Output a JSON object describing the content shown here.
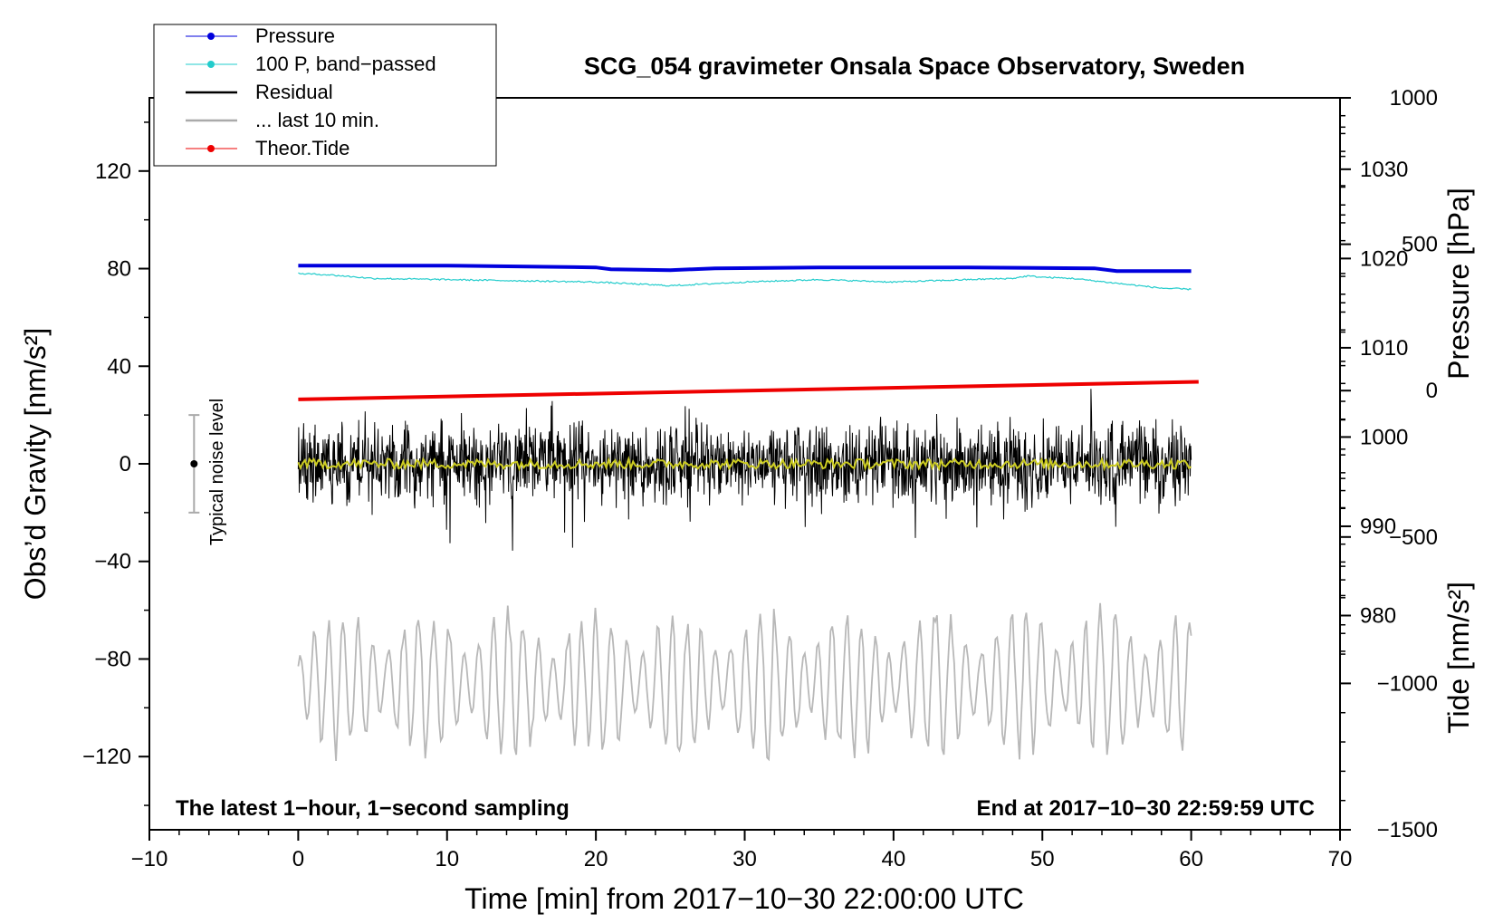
{
  "chart_data": {
    "type": "line",
    "title": "SCG_054 gravimeter Onsala Space Observatory, Sweden",
    "xlabel": "Time [min] from 2017−10−30 22:00:00 UTC",
    "ylabel_left": "Obs’d Gravity [nm/s²]",
    "ylabel_pressure": "Pressure [hPa]",
    "ylabel_tide": "Tide [nm/s²]",
    "xlim": [
      -10,
      70
    ],
    "ylim": [
      -150,
      150
    ],
    "pressure_ylim": [
      956,
      1038
    ],
    "tide_ylim": [
      -1500,
      1000
    ],
    "x_ticks": [
      "−10",
      "0",
      "10",
      "20",
      "30",
      "40",
      "50",
      "60",
      "70"
    ],
    "y_ticks": [
      "120",
      "80",
      "40",
      "0",
      "−40",
      "−80",
      "−120"
    ],
    "pressure_ticks": [
      "1030",
      "1020",
      "1010",
      "1000",
      "990",
      "980"
    ],
    "tide_ticks": [
      "1000",
      "500",
      "0",
      "−500",
      "−1000",
      "−1500"
    ],
    "legend": [
      {
        "label": "Pressure",
        "color": "#0000dd"
      },
      {
        "label": "100 P, band−passed",
        "color": "#22cccc"
      },
      {
        "label": "Residual",
        "color": "#000000"
      },
      {
        "label": "... last 10 min.",
        "color": "#aaaaaa"
      },
      {
        "label": "Theor.Tide",
        "color": "#ee0000"
      }
    ],
    "note_left": "The latest 1−hour, 1−second sampling",
    "note_right": "End at 2017−10−30 22:59:59 UTC",
    "noise_label": "Typical noise level",
    "noise_bar": {
      "x": -7,
      "center": 0,
      "half_range": 20
    },
    "series": [
      {
        "name": "Pressure",
        "unit": "hPa",
        "x": [
          0,
          10,
          20,
          21,
          25,
          28,
          35,
          45,
          53.5,
          55,
          60
        ],
        "values": [
          1019.2,
          1019.2,
          1019.0,
          1018.8,
          1018.7,
          1018.9,
          1019.0,
          1019.0,
          1018.9,
          1018.6,
          1018.6
        ]
      },
      {
        "name": "100 P, band−passed",
        "unit": "nm/s²",
        "x": [
          0,
          2,
          5,
          10,
          15,
          20,
          25,
          30,
          35,
          40,
          45,
          48,
          49,
          50,
          52,
          55,
          58,
          60
        ],
        "values": [
          78,
          77.5,
          76,
          75.5,
          75,
          74.5,
          73,
          74.5,
          75.5,
          74.5,
          75.5,
          76,
          77,
          76.5,
          76,
          74,
          72,
          71.5
        ]
      },
      {
        "name": "Residual",
        "unit": "nm/s²",
        "x_range": [
          0,
          60
        ],
        "envelope": [
          -38,
          38
        ],
        "typical_amplitude": 15
      },
      {
        "name": "Residual mean",
        "unit": "nm/s²",
        "x_range": [
          0,
          60
        ],
        "values_range": [
          -2,
          2
        ]
      },
      {
        "name": "... last 10 min.",
        "unit": "nm/s²",
        "x_range": [
          0,
          60
        ],
        "envelope": [
          -126,
          -56
        ],
        "center": -90
      },
      {
        "name": "Theor.Tide",
        "unit": "nm/s²",
        "x": [
          0,
          60.5
        ],
        "values": [
          -30,
          30
        ]
      }
    ]
  }
}
